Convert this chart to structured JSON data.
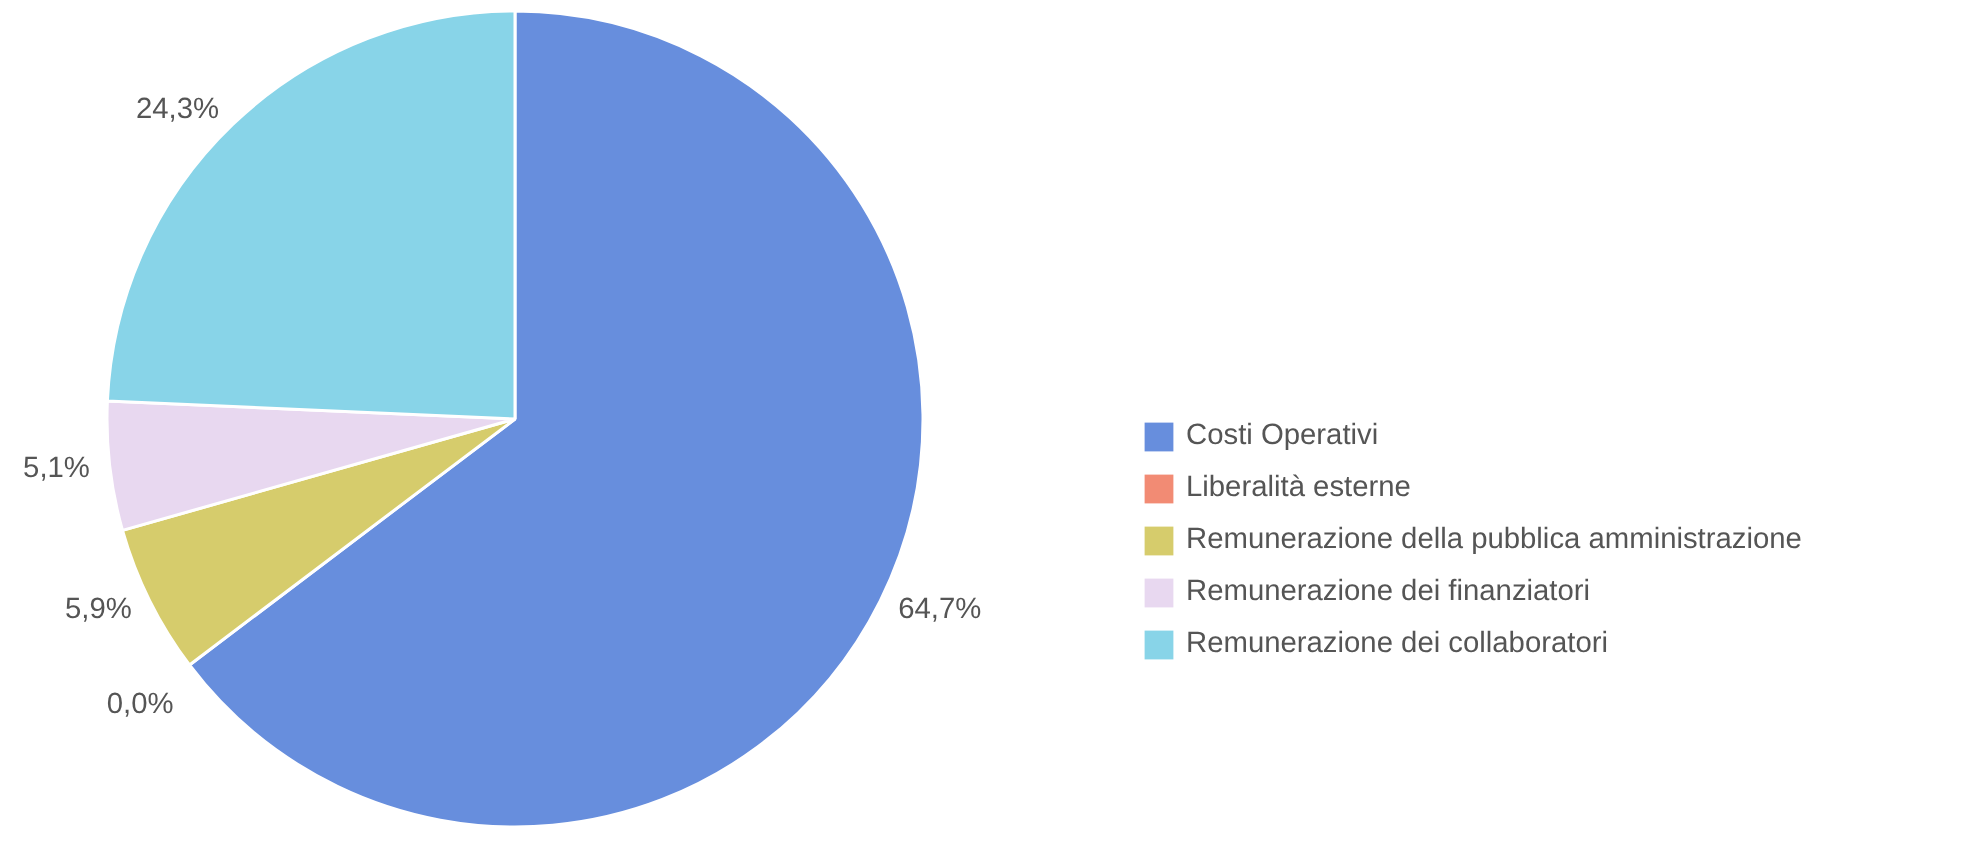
{
  "chart_data": {
    "type": "pie",
    "categories": [
      "Costi Operativi",
      "Liberalità esterne",
      "Remunerazione della pubblica amministrazione",
      "Remunerazione dei finanziatori",
      "Remunerazione dei collaboratori"
    ],
    "values": [
      64.7,
      0.0,
      5.9,
      5.1,
      24.3
    ],
    "colors": [
      "#678edd",
      "#f28b74",
      "#d6cc6c",
      "#e8d8f0",
      "#88d4e8"
    ],
    "value_labels": [
      "64,7%",
      "0,0%",
      "5,9%",
      "5,1%",
      "24,3%"
    ],
    "legend": "right"
  }
}
